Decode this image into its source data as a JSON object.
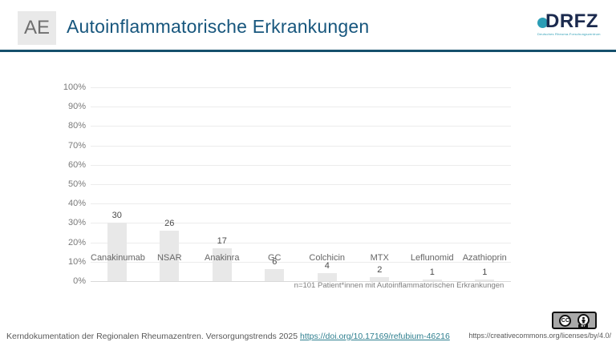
{
  "header": {
    "badge": "AE",
    "title": "Autoinflammatorische Erkrankungen",
    "logo": {
      "text": "DRFZ",
      "subtext": "Deutsches Rheuma-Forschungszentrum"
    }
  },
  "chart_data": {
    "type": "bar",
    "categories": [
      "Canakinumab",
      "NSAR",
      "Anakinra",
      "GC",
      "Colchicin",
      "MTX",
      "Leflunomid",
      "Azathioprin"
    ],
    "values": [
      30,
      26,
      17,
      6,
      4,
      2,
      1,
      1
    ],
    "title": "",
    "xlabel": "",
    "ylabel": "",
    "ylim": [
      0,
      100
    ],
    "ytick_step": 10,
    "ytick_labels": [
      "0%",
      "10%",
      "20%",
      "30%",
      "40%",
      "50%",
      "60%",
      "70%",
      "80%",
      "90%",
      "100%"
    ],
    "grid": true,
    "legend": false,
    "bar_color": "#e8e8e8",
    "note": "n=101 Patient*innen mit Autoinflammatorischen Erkrankungen"
  },
  "footer": {
    "source_text": "Kerndokumentation der Regionalen Rheumazentren. Versorgungstrends 2025 ",
    "doi_link": "https://doi.org/10.17169/refubium-46216",
    "cc_label": "CC",
    "cc_by_label": "BY",
    "license_url": "https://creativecommons.org/licenses/by/4.0/"
  },
  "colors": {
    "title": "#17567d",
    "header_rule": "#15506c",
    "logo_navy": "#1b2a4e",
    "logo_teal": "#2b9db5",
    "bar_fill": "#e8e8e8",
    "link_teal": "#2e7f8f"
  }
}
